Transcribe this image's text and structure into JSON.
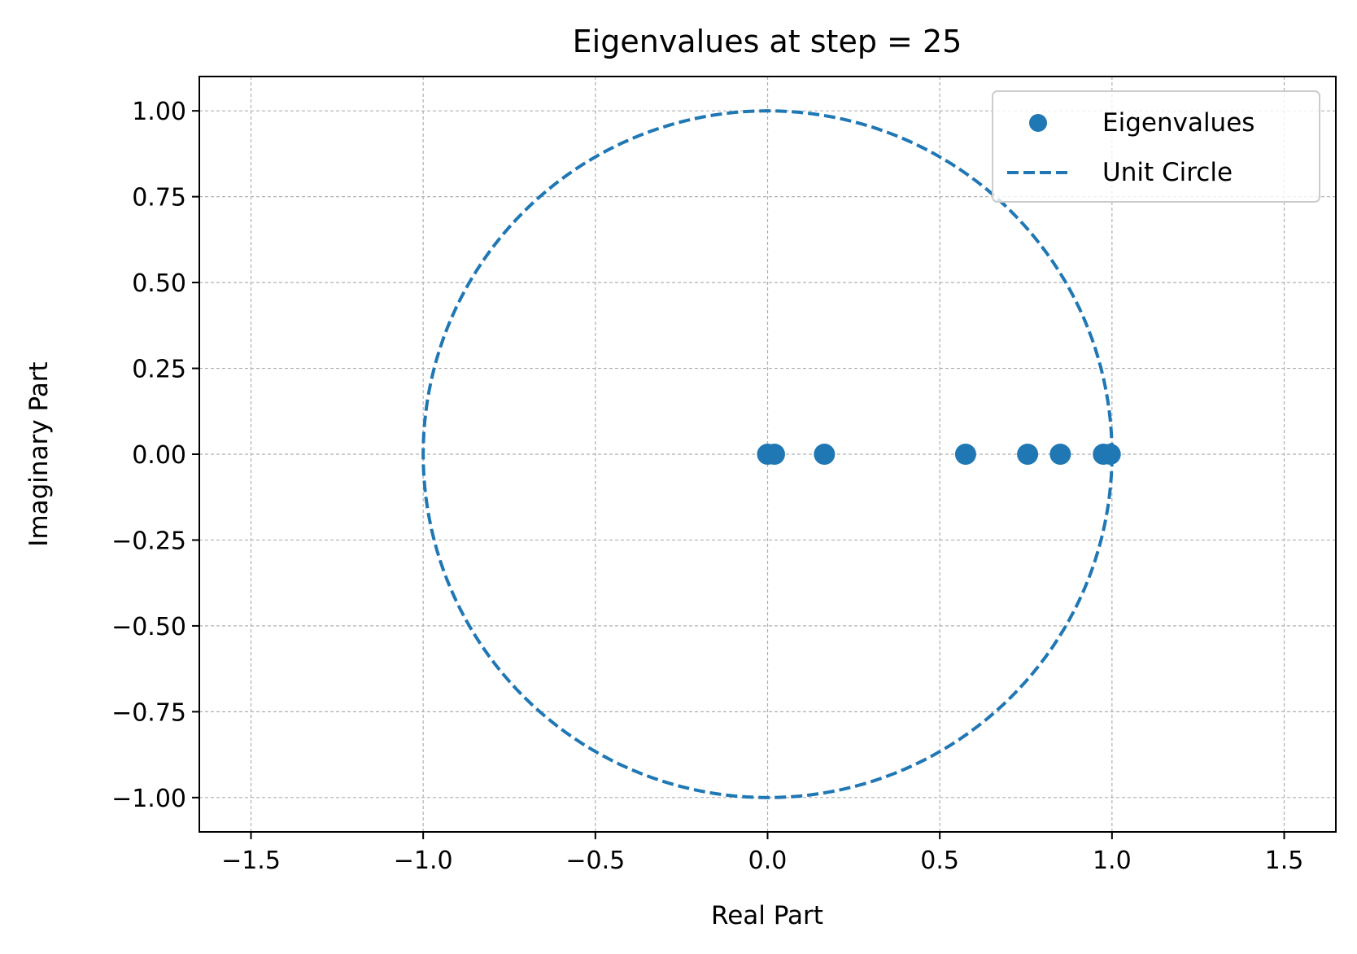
{
  "chart_data": {
    "type": "scatter",
    "title": "Eigenvalues at step = 25",
    "xlabel": "Real Part",
    "ylabel": "Imaginary Part",
    "xlim": [
      -1.65,
      1.65
    ],
    "ylim": [
      -1.1,
      1.1
    ],
    "xticks": [
      -1.5,
      -1.0,
      -0.5,
      0.0,
      0.5,
      1.0,
      1.5
    ],
    "xtick_labels": [
      "−1.5",
      "−1.0",
      "−0.5",
      "0.0",
      "0.5",
      "1.0",
      "1.5"
    ],
    "yticks": [
      1.0,
      0.75,
      0.5,
      0.25,
      0.0,
      -0.25,
      -0.5,
      -0.75,
      -1.0
    ],
    "ytick_labels": [
      "1.00",
      "0.75",
      "0.50",
      "0.25",
      "0.00",
      "−0.25",
      "−0.50",
      "−0.75",
      "−1.00"
    ],
    "grid": true,
    "legend_position": "top-right",
    "color": "#1f77b4",
    "series": [
      {
        "name": "Eigenvalues",
        "kind": "scatter",
        "points": [
          {
            "x": 0.0,
            "y": 0.0
          },
          {
            "x": 0.02,
            "y": 0.0
          },
          {
            "x": 0.165,
            "y": 0.0
          },
          {
            "x": 0.575,
            "y": 0.0
          },
          {
            "x": 0.755,
            "y": 0.0
          },
          {
            "x": 0.85,
            "y": 0.0
          },
          {
            "x": 0.975,
            "y": 0.0
          },
          {
            "x": 0.995,
            "y": 0.0
          }
        ]
      },
      {
        "name": "Unit Circle",
        "kind": "line",
        "style": "dashed",
        "center": [
          0,
          0
        ],
        "radius": 1.0
      }
    ]
  }
}
